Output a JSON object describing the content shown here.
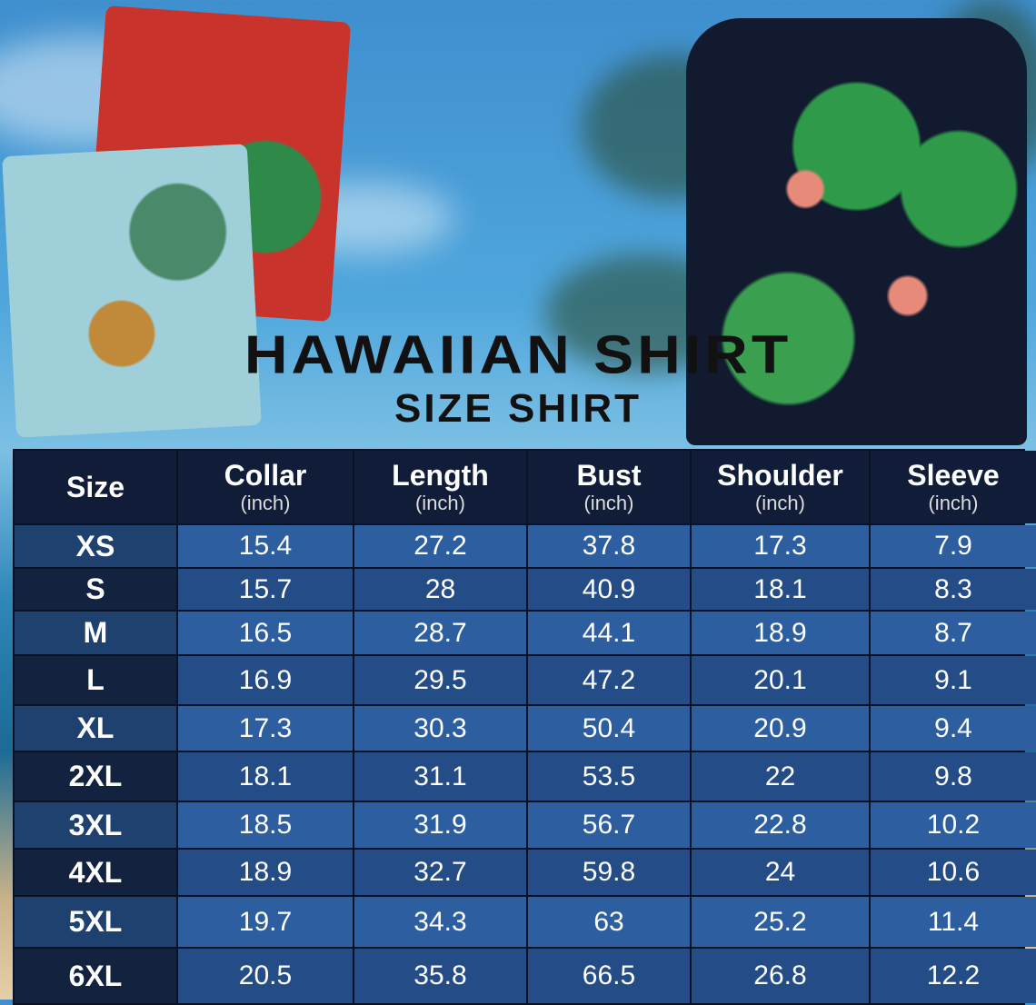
{
  "title": "HAWAIIAN SHIRT",
  "subtitle": "SIZE SHIRT",
  "table": {
    "headers": [
      {
        "label": "Size",
        "unit": ""
      },
      {
        "label": "Collar",
        "unit": "(inch)"
      },
      {
        "label": "Length",
        "unit": "(inch)"
      },
      {
        "label": "Bust",
        "unit": "(inch)"
      },
      {
        "label": "Shoulder",
        "unit": "(inch)"
      },
      {
        "label": "Sleeve",
        "unit": "(inch)"
      }
    ],
    "rows": [
      [
        "XS",
        "15.4",
        "27.2",
        "37.8",
        "17.3",
        "7.9"
      ],
      [
        "S",
        "15.7",
        "28",
        "40.9",
        "18.1",
        "8.3"
      ],
      [
        "M",
        "16.5",
        "28.7",
        "44.1",
        "18.9",
        "8.7"
      ],
      [
        "L",
        "16.9",
        "29.5",
        "47.2",
        "20.1",
        "9.1"
      ],
      [
        "XL",
        "17.3",
        "30.3",
        "50.4",
        "20.9",
        "9.4"
      ],
      [
        "2XL",
        "18.1",
        "31.1",
        "53.5",
        "22",
        "9.8"
      ],
      [
        "3XL",
        "18.5",
        "31.9",
        "56.7",
        "22.8",
        "10.2"
      ],
      [
        "4XL",
        "18.9",
        "32.7",
        "59.8",
        "24",
        "10.6"
      ],
      [
        "5XL",
        "19.7",
        "34.3",
        "63",
        "25.2",
        "11.4"
      ],
      [
        "6XL",
        "20.5",
        "35.8",
        "66.5",
        "26.8",
        "12.2"
      ]
    ]
  },
  "colors": {
    "header": "#111d38",
    "row_light": "#2d5ea0",
    "row_dark": "#244c86",
    "size_light": "#1f4170",
    "size_dark": "#13223f"
  }
}
